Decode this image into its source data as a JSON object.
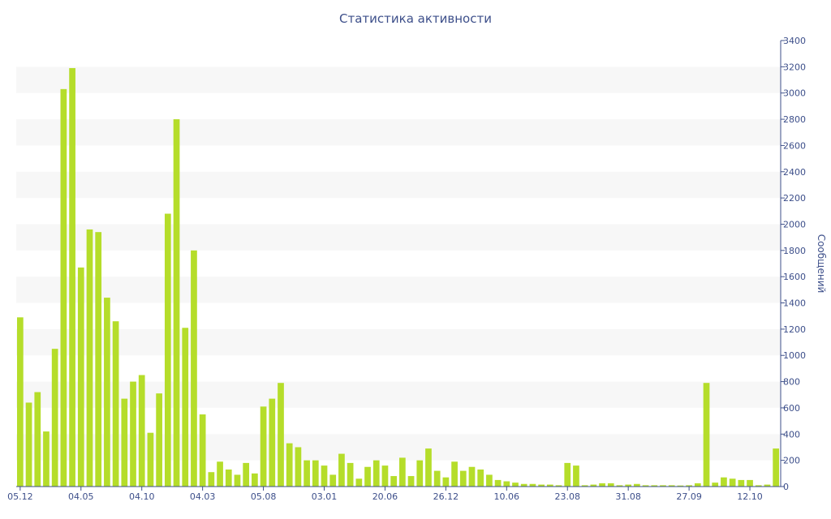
{
  "chart_data": {
    "type": "bar",
    "title": "Статистика активности",
    "ylabel": "Сообщений",
    "ylim": [
      0,
      3400
    ],
    "y_axis_side": "right",
    "grid": "alternating horizontal bands",
    "bar_color": "#b5dd2a",
    "band_color": "#f7f7f7",
    "axis_color": "#3d4f8a",
    "yticks": [
      "0",
      "200",
      "400",
      "600",
      "800",
      "1000",
      "1200",
      "1400",
      "1600",
      "1800",
      "2000",
      "2200",
      "2400",
      "2600",
      "2800",
      "3000",
      "3200",
      "3400"
    ],
    "xtick_labels": [
      {
        "index": 0,
        "label": "05.12"
      },
      {
        "index": 7,
        "label": "04.05"
      },
      {
        "index": 14,
        "label": "04.10"
      },
      {
        "index": 21,
        "label": "04.03"
      },
      {
        "index": 28,
        "label": "05.08"
      },
      {
        "index": 35,
        "label": "03.01"
      },
      {
        "index": 42,
        "label": "20.06"
      },
      {
        "index": 49,
        "label": "26.12"
      },
      {
        "index": 56,
        "label": "10.06"
      },
      {
        "index": 63,
        "label": "23.08"
      },
      {
        "index": 70,
        "label": "31.08"
      },
      {
        "index": 77,
        "label": "27.09"
      },
      {
        "index": 84,
        "label": "12.10"
      }
    ],
    "values": [
      1290,
      640,
      720,
      420,
      1050,
      3030,
      3190,
      1670,
      1960,
      1940,
      1440,
      1260,
      670,
      800,
      850,
      410,
      710,
      2080,
      2800,
      1210,
      1800,
      550,
      110,
      190,
      130,
      90,
      180,
      100,
      610,
      670,
      790,
      330,
      300,
      200,
      200,
      160,
      90,
      250,
      180,
      60,
      150,
      200,
      160,
      80,
      220,
      80,
      200,
      290,
      120,
      70,
      190,
      120,
      150,
      130,
      90,
      50,
      40,
      30,
      20,
      20,
      15,
      15,
      10,
      180,
      160,
      10,
      15,
      25,
      25,
      10,
      15,
      20,
      10,
      10,
      10,
      10,
      8,
      10,
      25,
      790,
      30,
      70,
      60,
      50,
      50,
      10,
      15,
      290
    ]
  }
}
